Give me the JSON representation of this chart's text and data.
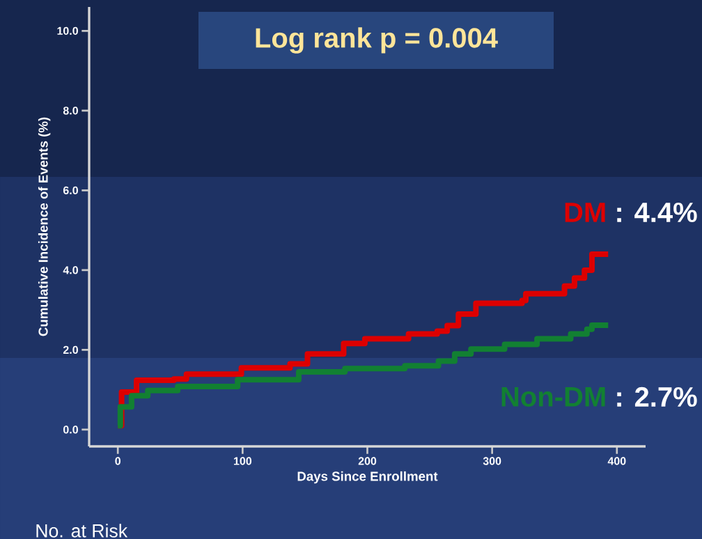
{
  "chart_data": {
    "type": "step",
    "title": "Log rank p = 0.004",
    "xlabel": "Days Since Enrollment",
    "ylabel": "Cumulative Incidence of Events (%)",
    "xlim": [
      -23,
      423
    ],
    "ylim": [
      -0.42,
      10.6
    ],
    "xticks": [
      0,
      100,
      200,
      300,
      400
    ],
    "yticks": [
      {
        "value": 0,
        "label": "0.0"
      },
      {
        "value": 2,
        "label": "2.0"
      },
      {
        "value": 4,
        "label": "4.0"
      },
      {
        "value": 6,
        "label": "6.0"
      },
      {
        "value": 8,
        "label": "8.0"
      },
      {
        "value": 10,
        "label": "10.0"
      }
    ],
    "grid": false,
    "legend": false,
    "marker": "none",
    "line_style": "solid",
    "series": [
      {
        "name": "DM",
        "color": "#dd0000",
        "x": [
          0,
          3,
          15,
          45,
          55,
          99,
          138,
          152,
          181,
          198,
          233,
          256,
          264,
          273,
          287,
          324,
          327,
          354,
          358,
          366,
          374,
          380,
          393
        ],
        "values": [
          0.1,
          0.94,
          1.24,
          1.27,
          1.39,
          1.55,
          1.65,
          1.9,
          2.16,
          2.28,
          2.4,
          2.47,
          2.61,
          2.9,
          3.17,
          3.24,
          3.41,
          3.41,
          3.6,
          3.8,
          4.0,
          4.4,
          4.4
        ]
      },
      {
        "name": "Non-DM",
        "color": "#128032",
        "x": [
          0,
          2,
          11,
          24,
          48,
          96,
          145,
          182,
          230,
          257,
          270,
          283,
          310,
          336,
          363,
          376,
          380,
          393
        ],
        "values": [
          0.1,
          0.57,
          0.85,
          0.98,
          1.08,
          1.25,
          1.45,
          1.53,
          1.6,
          1.72,
          1.9,
          2.02,
          2.14,
          2.28,
          2.4,
          2.52,
          2.62,
          2.62
        ]
      }
    ],
    "annotations": [
      "No. at Risk",
      ": 4.4%",
      ": 2.7%"
    ]
  }
}
